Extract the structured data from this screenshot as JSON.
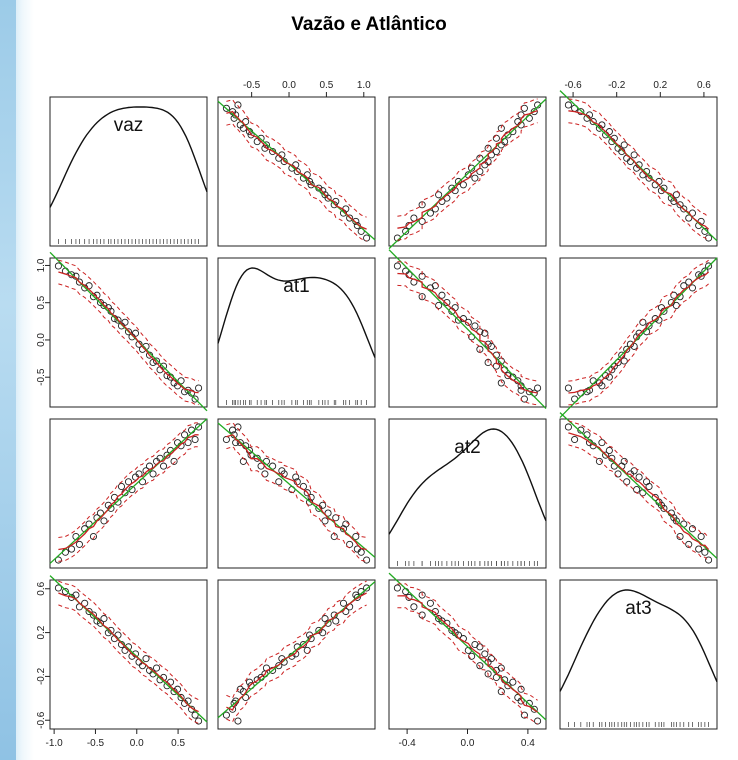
{
  "title": "Vazão e Atlântico",
  "chart_data": {
    "type": "scatter",
    "variables": [
      "vaz",
      "at1",
      "at2",
      "at3"
    ],
    "diagonal": "density",
    "smoothers": {
      "linear_fit": "#22aa22",
      "loess": "#cc2222",
      "bands": "dashed"
    },
    "axes": {
      "top_col2": {
        "ticks": [
          "-0.5",
          "0.0",
          "0.5",
          "1.0"
        ],
        "range": [
          -0.95,
          1.15
        ]
      },
      "top_col4": {
        "ticks": [
          "-0.6",
          "-0.2",
          "0.2",
          "0.6"
        ],
        "range": [
          -0.72,
          0.72
        ]
      },
      "bottom_col1": {
        "ticks": [
          "-1.0",
          "-0.5",
          "0.0",
          "0.5"
        ],
        "range": [
          -1.05,
          0.85
        ]
      },
      "bottom_col3": {
        "ticks": [
          "-0.4",
          "0.0",
          "0.4"
        ],
        "range": [
          -0.52,
          0.52
        ]
      },
      "left_row2": {
        "ticks": [
          "1.0",
          "0.5",
          "0.0",
          "-0.5"
        ],
        "range": [
          -0.9,
          1.1
        ]
      },
      "left_row4": {
        "ticks": [
          "0.6",
          "0.2",
          "-0.2",
          "-0.6"
        ],
        "range": [
          -0.68,
          0.68
        ]
      }
    },
    "observations": {
      "vaz": [
        -0.9,
        -0.82,
        -0.75,
        -0.7,
        -0.66,
        -0.6,
        -0.55,
        -0.5,
        -0.46,
        -0.42,
        -0.38,
        -0.33,
        -0.3,
        -0.26,
        -0.22,
        -0.18,
        -0.14,
        -0.1,
        -0.06,
        -0.02,
        0.02,
        0.06,
        0.1,
        0.14,
        0.18,
        0.22,
        0.26,
        0.3,
        0.34,
        0.38,
        0.42,
        0.46,
        0.5,
        0.54,
        0.58,
        0.62,
        0.66,
        0.7
      ],
      "at1": [
        1.02,
        0.95,
        0.9,
        0.88,
        0.8,
        0.72,
        0.75,
        0.6,
        0.62,
        0.52,
        0.48,
        0.45,
        0.4,
        0.3,
        0.28,
        0.2,
        0.25,
        0.12,
        0.05,
        0.1,
        -0.05,
        -0.12,
        -0.08,
        -0.2,
        -0.3,
        -0.28,
        -0.4,
        -0.35,
        -0.48,
        -0.5,
        -0.58,
        -0.62,
        -0.55,
        -0.7,
        -0.68,
        -0.72,
        -0.8,
        -0.65
      ],
      "at2": [
        -0.45,
        -0.4,
        -0.38,
        -0.3,
        -0.35,
        -0.25,
        -0.22,
        -0.3,
        -0.18,
        -0.15,
        -0.2,
        -0.1,
        -0.12,
        -0.05,
        -0.08,
        0.02,
        -0.02,
        0.05,
        0.0,
        0.08,
        0.1,
        0.05,
        0.12,
        0.15,
        0.1,
        0.18,
        0.2,
        0.15,
        0.22,
        0.25,
        0.18,
        0.3,
        0.28,
        0.35,
        0.3,
        0.38,
        0.32,
        0.4
      ],
      "at3": [
        0.58,
        0.55,
        0.5,
        0.52,
        0.42,
        0.45,
        0.38,
        0.35,
        0.3,
        0.28,
        0.32,
        0.2,
        0.22,
        0.15,
        0.18,
        0.1,
        0.05,
        0.08,
        0.0,
        0.02,
        -0.05,
        -0.08,
        -0.02,
        -0.12,
        -0.15,
        -0.1,
        -0.2,
        -0.18,
        -0.25,
        -0.22,
        -0.3,
        -0.28,
        -0.35,
        -0.4,
        -0.38,
        -0.45,
        -0.5,
        -0.55
      ]
    }
  }
}
